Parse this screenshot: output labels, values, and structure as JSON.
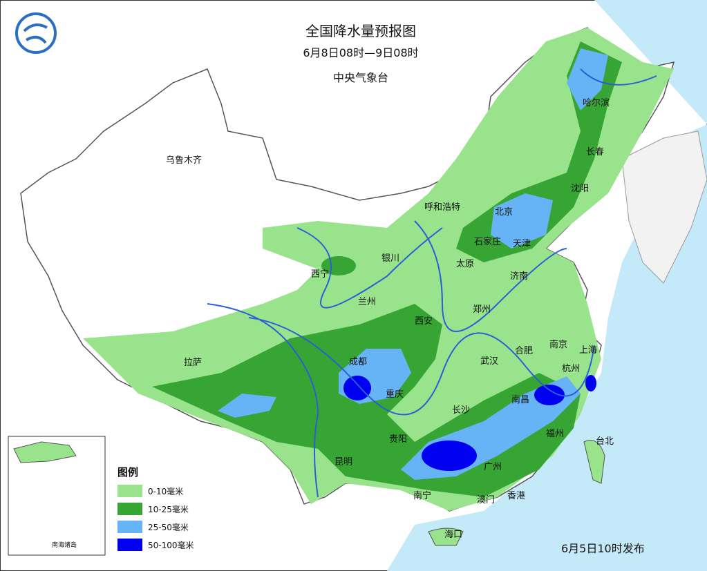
{
  "title": "全国降水量预报图",
  "subtitle": "6月8日08时—9日08时",
  "agency": "中央气象台",
  "cities": [
    "哈尔滨",
    "长春",
    "沈阳",
    "乌鲁木齐",
    "呼和浩特",
    "北京",
    "天津",
    "石家庄",
    "银川",
    "太原",
    "济南",
    "西宁",
    "兰州",
    "郑州",
    "西安",
    "南京",
    "上海",
    "合肥",
    "拉萨",
    "成都",
    "武汉",
    "杭州",
    "重庆",
    "南昌",
    "长沙",
    "福州",
    "贵阳",
    "台北",
    "昆明",
    "广州",
    "南宁",
    "澳门",
    "香港",
    "海口"
  ],
  "legend": {
    "title": "图例",
    "items": [
      {
        "label": "0-10毫米",
        "color": "#99e38c"
      },
      {
        "label": "10-25毫米",
        "color": "#36a534"
      },
      {
        "label": "25-50毫米",
        "color": "#66b4f5"
      },
      {
        "label": "50-100毫米",
        "color": "#0000f0"
      }
    ]
  },
  "issued": "6月5日10时发布",
  "inset_label": "南海诸岛"
}
